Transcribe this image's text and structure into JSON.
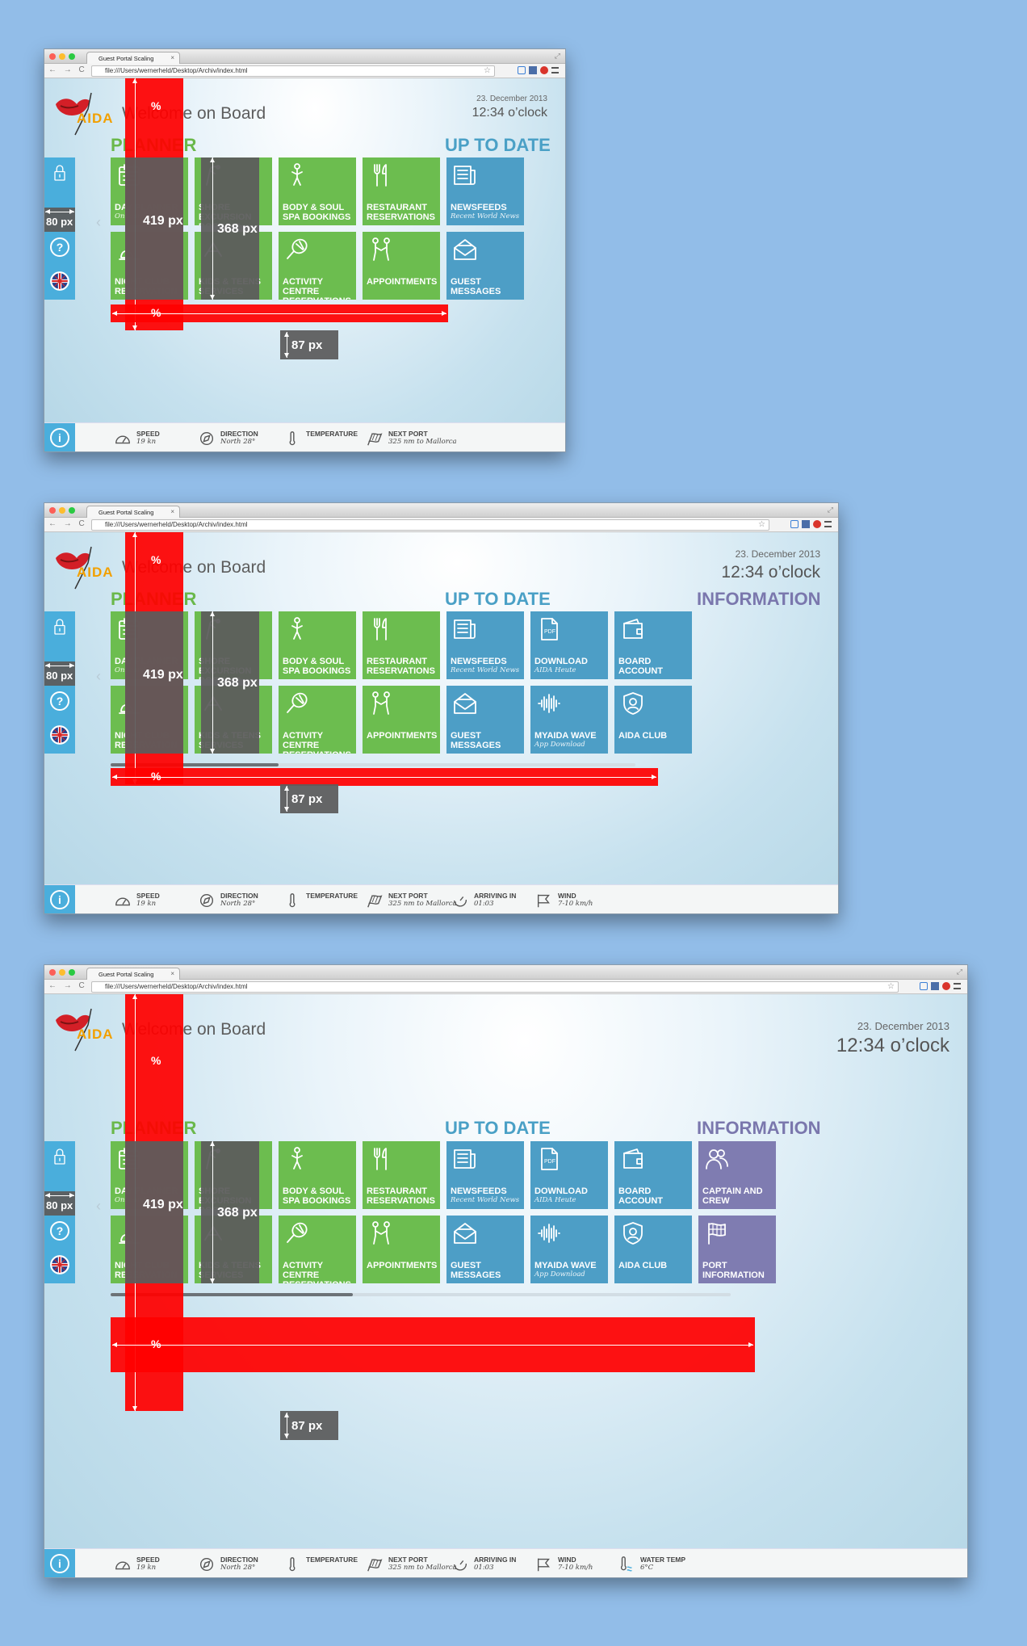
{
  "browser": {
    "tab_title": "Guest Portal Scaling",
    "tab_close": "×",
    "url": "file:///Users/wernerheld/Desktop/Archiv/index.html",
    "nav_glyphs": "← → C"
  },
  "portal": {
    "brand": "AIDA",
    "welcome": "Welcome on Board",
    "date": "23. December 2013",
    "time": "12:34 o’clock"
  },
  "sections": {
    "planner": "PLANNER",
    "uptodate": "UP TO DATE",
    "information": "INFORMATION"
  },
  "tiles": {
    "day_planner": {
      "title": "DAY PLANNER",
      "sub": "Onboard"
    },
    "night_club": {
      "title": "NIGHT CLUB RESERVATION",
      "sub": ""
    },
    "shore": {
      "title": "SHORE EXCURSION BOOKING",
      "sub": ""
    },
    "kids": {
      "title": "KIDS & TEENS SERVICES",
      "sub": ""
    },
    "body_soul": {
      "title": "BODY & SOUL SPA BOOKINGS",
      "sub": ""
    },
    "activity": {
      "title": "ACTIVITY CENTRE RESERVATIONS",
      "sub": ""
    },
    "restaurant": {
      "title": "RESTAURANT RESERVATIONS",
      "sub": ""
    },
    "appointments": {
      "title": "APPOINTMENTS",
      "sub": ""
    },
    "newsfeeds": {
      "title": "NEWSFEEDS",
      "sub": "Recent World News"
    },
    "guest_messages": {
      "title": "GUEST MESSAGES",
      "sub": ""
    },
    "download": {
      "title": "DOWNLOAD",
      "sub": "AIDA Heute"
    },
    "myaida_wave": {
      "title": "MYAIDA WAVE",
      "sub": "App Download"
    },
    "board_account": {
      "title": "BOARD ACCOUNT",
      "sub": ""
    },
    "aida_club": {
      "title": "AIDA CLUB",
      "sub": ""
    },
    "captain": {
      "title": "CAPTAIN AND CREW",
      "sub": ""
    },
    "port_info": {
      "title": "PORT INFORMATION",
      "sub": ""
    }
  },
  "sidebar": {
    "help": "?",
    "info": "i"
  },
  "footer": {
    "speed": {
      "label": "SPEED",
      "value": "19 kn"
    },
    "direction": {
      "label": "DIRECTION",
      "value": "North 28°"
    },
    "temperature": {
      "label": "TEMPERATURE",
      "value": ""
    },
    "next_port": {
      "label": "NEXT PORT",
      "value": "325 nm to Mallorca"
    },
    "arriving": {
      "label": "ARRIVING IN",
      "value": "01:03"
    },
    "wind": {
      "label": "WIND",
      "value": "7-10 km/h"
    },
    "water": {
      "label": "WATER TEMP",
      "value": "6°C"
    }
  },
  "overlay": {
    "percent": "%",
    "planner_height": "419 px",
    "tile_height": "368 px",
    "sidebar_width": "80 px",
    "footer_height": "87 px"
  },
  "colors": {
    "planner_green": "#6cbd4f",
    "uptodate_blue": "#4d9ec6",
    "information_purple": "#7f7cb1",
    "sidebar_blue": "#4aaedc",
    "measure_red": "#ff0000",
    "measure_gray": "#5c5c5c",
    "background": "#92bde8"
  },
  "screens": [
    {
      "id": "small",
      "page_width": 500,
      "page_height": 348
    },
    {
      "id": "medium",
      "page_width": 760,
      "page_height": 348
    },
    {
      "id": "large",
      "page_width": 880,
      "page_height": 552
    }
  ]
}
